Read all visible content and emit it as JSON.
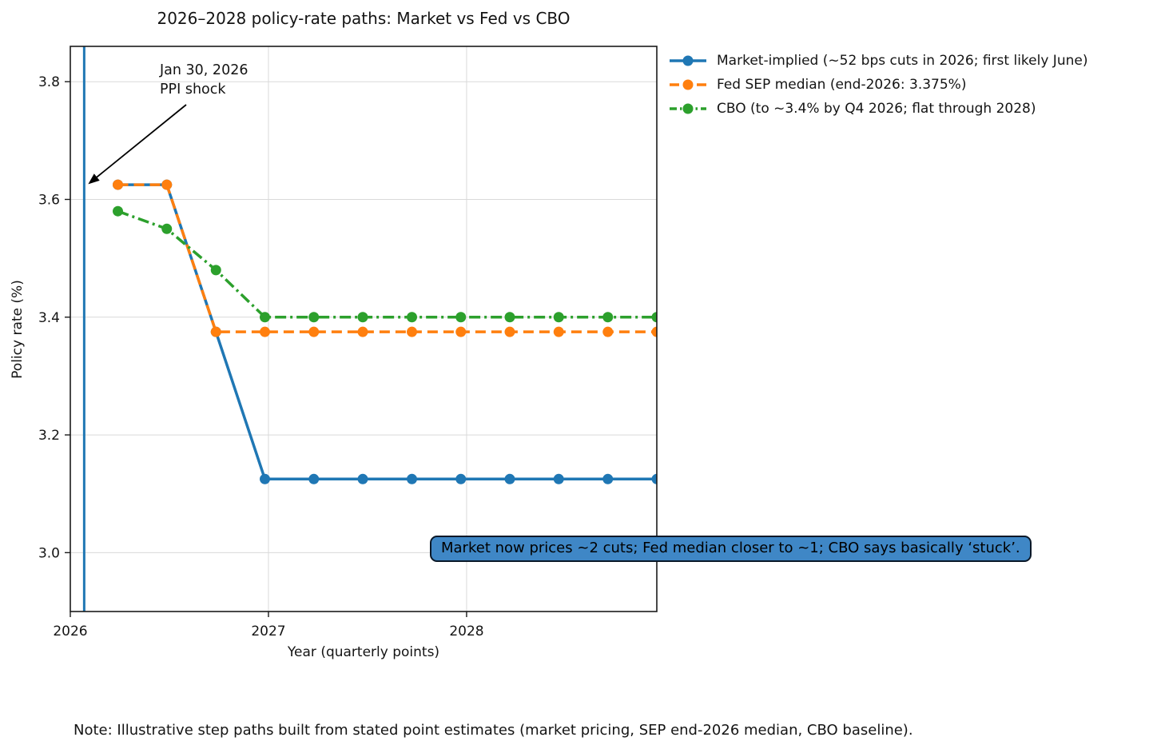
{
  "note": "Note: Illustrative step paths built from stated point estimates (market pricing, SEP end-2026 median, CBO baseline).",
  "annotation": {
    "line1": "Jan 30, 2026",
    "line2": "PPI shock"
  },
  "callout": {
    "text": "Market now prices ~2 cuts; Fed median closer to ~1; CBO says basically ‘stuck’.",
    "fill": "#3f87c6",
    "border": "#0a1828",
    "text_color": "#000000"
  },
  "chart_data": {
    "type": "line",
    "title": "2026–2028 policy-rate paths: Market vs Fed vs CBO",
    "xlabel": "Year (quarterly points)",
    "ylabel": "Policy rate (%)",
    "xlim": [
      2026.0,
      2028.96
    ],
    "ylim": [
      2.9,
      3.86
    ],
    "grid": true,
    "grid_color": "#d9d9d9",
    "legend_position": "outside upper right",
    "x_ticks": [
      {
        "v": 2026,
        "label": "2026"
      },
      {
        "v": 2027,
        "label": "2027"
      },
      {
        "v": 2028,
        "label": "2028"
      }
    ],
    "y_ticks": [
      {
        "v": 3.0,
        "label": "3.0"
      },
      {
        "v": 3.2,
        "label": "3.2"
      },
      {
        "v": 3.4,
        "label": "3.4"
      },
      {
        "v": 3.6,
        "label": "3.6"
      },
      {
        "v": 3.8,
        "label": "3.8"
      }
    ],
    "x": [
      2026.24,
      2026.487,
      2026.735,
      2026.982,
      2027.229,
      2027.476,
      2027.724,
      2027.971,
      2028.218,
      2028.465,
      2028.713,
      2028.96
    ],
    "series": [
      {
        "id": "market-implied",
        "name": "Market-implied (~52 bps cuts in 2026; first likely June)",
        "color": "#1f77b4",
        "linestyle": "solid",
        "values": [
          3.625,
          3.625,
          3.375,
          3.125,
          3.125,
          3.125,
          3.125,
          3.125,
          3.125,
          3.125,
          3.125,
          3.125
        ]
      },
      {
        "id": "fed-sep-median",
        "name": "Fed SEP median (end-2026: 3.375%)",
        "color": "#ff7f0e",
        "linestyle": "dashed",
        "values": [
          3.625,
          3.625,
          3.375,
          3.375,
          3.375,
          3.375,
          3.375,
          3.375,
          3.375,
          3.375,
          3.375,
          3.375
        ]
      },
      {
        "id": "cbo",
        "name": "CBO (to ~3.4% by Q4 2026; flat through 2028)",
        "color": "#2ca02c",
        "linestyle": "dashdot",
        "values": [
          3.58,
          3.55,
          3.48,
          3.4,
          3.4,
          3.4,
          3.4,
          3.4,
          3.4,
          3.4,
          3.4,
          3.4
        ]
      }
    ],
    "event_line": {
      "x": 2026.07,
      "color": "#1f77b4",
      "annotation_target": {
        "x": 2026.07,
        "y": 3.63
      }
    }
  }
}
